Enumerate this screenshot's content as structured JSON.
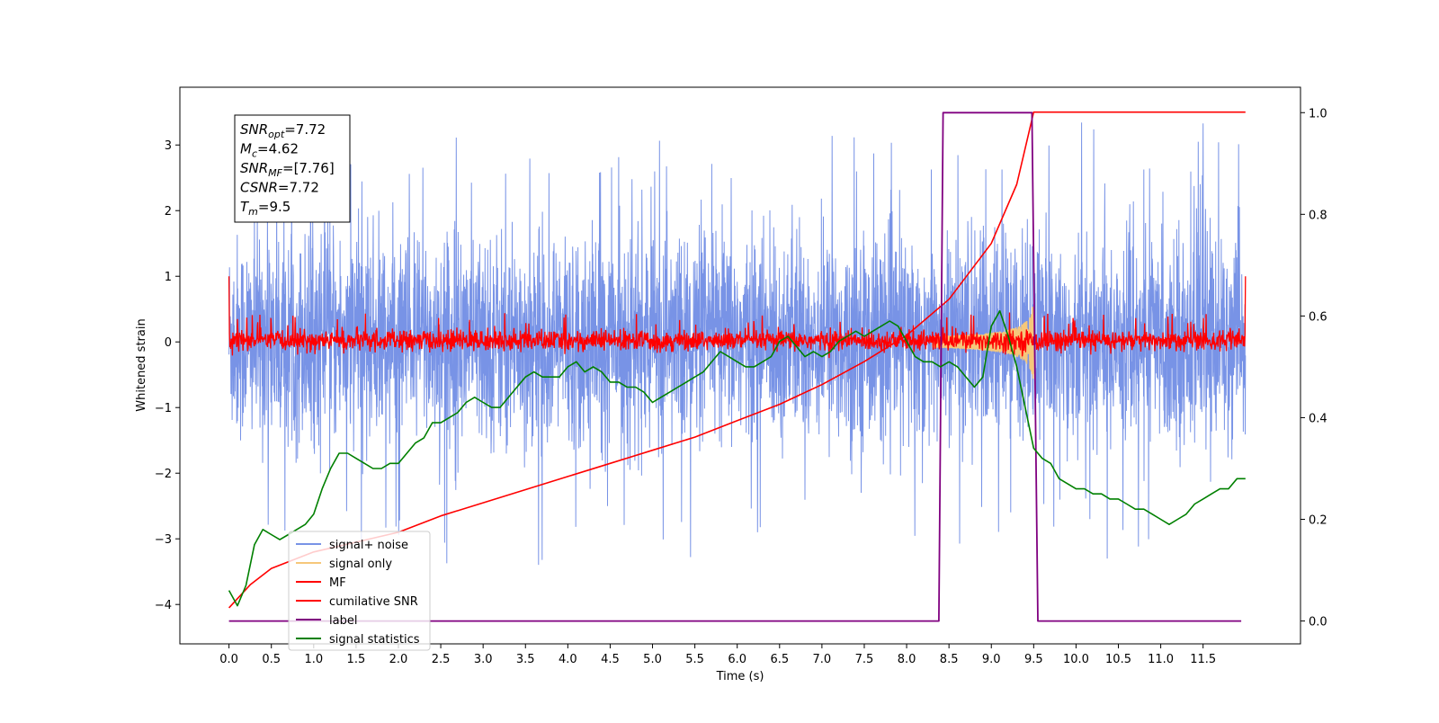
{
  "chart_data": {
    "type": "line",
    "xlabel": "Time (s)",
    "ylabel_left": "Whitened strain",
    "ylabel_right": "",
    "xlim": [
      -0.58,
      12.65
    ],
    "ylim_left": [
      -4.6,
      3.88
    ],
    "ylim_right": [
      -0.045,
      1.05
    ],
    "x_ticks": [
      "0.0",
      "0.5",
      "1.0",
      "1.5",
      "2.0",
      "2.5",
      "3.0",
      "3.5",
      "4.0",
      "4.5",
      "5.0",
      "5.5",
      "6.0",
      "6.5",
      "7.0",
      "7.5",
      "8.0",
      "8.5",
      "9.0",
      "9.5",
      "10.0",
      "10.5",
      "11.0",
      "11.5"
    ],
    "y_ticks_left": [
      "−4",
      "−3",
      "−2",
      "−1",
      "0",
      "1",
      "2",
      "3"
    ],
    "y_ticks_right": [
      "0.0",
      "0.2",
      "0.4",
      "0.6",
      "0.8",
      "1.0"
    ],
    "grid": false,
    "legend_position": "lower-left",
    "annotation": {
      "lines": [
        {
          "base": "SNR",
          "sub": "opt",
          "value": "=7.72"
        },
        {
          "base": "M",
          "sub": "c",
          "value": "=4.62"
        },
        {
          "base": "SNR",
          "sub": "MF",
          "value": "=[7.76]"
        },
        {
          "base": "CSNR",
          "sub": "",
          "value": "=7.72"
        },
        {
          "base": "T",
          "sub": "m",
          "value": "=9.5"
        }
      ]
    },
    "series": [
      {
        "name": "signal+ noise",
        "color": "#7893e6",
        "axis": "left",
        "kind": "noise",
        "x_range": [
          0.0,
          12.0
        ],
        "approx_band": [
          -1.2,
          1.3
        ],
        "approx_extremes": [
          -3.7,
          3.4
        ]
      },
      {
        "name": "signal only",
        "color": "#f6c77a",
        "axis": "left",
        "kind": "chirp",
        "x_range": [
          8.3,
          9.5
        ],
        "peak_amplitude": 0.6,
        "merger_time": 9.5
      },
      {
        "name": "MF",
        "color": "#ff0000",
        "axis": "left",
        "kind": "noise",
        "x_range": [
          0.0,
          12.0
        ],
        "approx_band": [
          -0.15,
          0.2
        ],
        "edge_values": [
          1.0,
          1.0
        ]
      },
      {
        "name": "cumilative SNR",
        "color": "#ff0000",
        "axis": "left",
        "points": [
          [
            0.0,
            -4.05
          ],
          [
            0.25,
            -3.7
          ],
          [
            0.5,
            -3.45
          ],
          [
            1.0,
            -3.2
          ],
          [
            1.5,
            -3.05
          ],
          [
            2.0,
            -2.9
          ],
          [
            2.5,
            -2.65
          ],
          [
            3.0,
            -2.45
          ],
          [
            3.5,
            -2.25
          ],
          [
            4.0,
            -2.05
          ],
          [
            4.5,
            -1.85
          ],
          [
            5.0,
            -1.65
          ],
          [
            5.5,
            -1.45
          ],
          [
            6.0,
            -1.2
          ],
          [
            6.5,
            -0.95
          ],
          [
            7.0,
            -0.65
          ],
          [
            7.5,
            -0.3
          ],
          [
            8.0,
            0.1
          ],
          [
            8.5,
            0.65
          ],
          [
            9.0,
            1.5
          ],
          [
            9.3,
            2.4
          ],
          [
            9.5,
            3.5
          ],
          [
            12.0,
            3.5
          ]
        ]
      },
      {
        "name": "label",
        "color": "#800080",
        "axis": "right",
        "points": [
          [
            0.0,
            0.0
          ],
          [
            8.38,
            0.0
          ],
          [
            8.43,
            1.0
          ],
          [
            9.48,
            1.0
          ],
          [
            9.55,
            0.0
          ],
          [
            11.95,
            0.0
          ]
        ]
      },
      {
        "name": "signal statistics",
        "color": "#008000",
        "axis": "right",
        "points": [
          [
            0.0,
            0.06
          ],
          [
            0.1,
            0.03
          ],
          [
            0.2,
            0.07
          ],
          [
            0.3,
            0.15
          ],
          [
            0.4,
            0.18
          ],
          [
            0.5,
            0.17
          ],
          [
            0.6,
            0.16
          ],
          [
            0.7,
            0.17
          ],
          [
            0.8,
            0.18
          ],
          [
            0.9,
            0.19
          ],
          [
            1.0,
            0.21
          ],
          [
            1.1,
            0.26
          ],
          [
            1.2,
            0.3
          ],
          [
            1.3,
            0.33
          ],
          [
            1.4,
            0.33
          ],
          [
            1.5,
            0.32
          ],
          [
            1.6,
            0.31
          ],
          [
            1.7,
            0.3
          ],
          [
            1.8,
            0.3
          ],
          [
            1.9,
            0.31
          ],
          [
            2.0,
            0.31
          ],
          [
            2.1,
            0.33
          ],
          [
            2.2,
            0.35
          ],
          [
            2.3,
            0.36
          ],
          [
            2.4,
            0.39
          ],
          [
            2.5,
            0.39
          ],
          [
            2.6,
            0.4
          ],
          [
            2.7,
            0.41
          ],
          [
            2.8,
            0.43
          ],
          [
            2.9,
            0.44
          ],
          [
            3.0,
            0.43
          ],
          [
            3.1,
            0.42
          ],
          [
            3.2,
            0.42
          ],
          [
            3.3,
            0.44
          ],
          [
            3.4,
            0.46
          ],
          [
            3.5,
            0.48
          ],
          [
            3.6,
            0.49
          ],
          [
            3.7,
            0.48
          ],
          [
            3.8,
            0.48
          ],
          [
            3.9,
            0.48
          ],
          [
            4.0,
            0.5
          ],
          [
            4.1,
            0.51
          ],
          [
            4.2,
            0.49
          ],
          [
            4.3,
            0.5
          ],
          [
            4.4,
            0.49
          ],
          [
            4.5,
            0.47
          ],
          [
            4.6,
            0.47
          ],
          [
            4.7,
            0.46
          ],
          [
            4.8,
            0.46
          ],
          [
            4.9,
            0.45
          ],
          [
            5.0,
            0.43
          ],
          [
            5.1,
            0.44
          ],
          [
            5.2,
            0.45
          ],
          [
            5.3,
            0.46
          ],
          [
            5.4,
            0.47
          ],
          [
            5.5,
            0.48
          ],
          [
            5.6,
            0.49
          ],
          [
            5.7,
            0.51
          ],
          [
            5.8,
            0.53
          ],
          [
            5.9,
            0.52
          ],
          [
            6.0,
            0.51
          ],
          [
            6.1,
            0.5
          ],
          [
            6.2,
            0.5
          ],
          [
            6.3,
            0.51
          ],
          [
            6.4,
            0.52
          ],
          [
            6.5,
            0.55
          ],
          [
            6.6,
            0.56
          ],
          [
            6.7,
            0.54
          ],
          [
            6.8,
            0.52
          ],
          [
            6.9,
            0.53
          ],
          [
            7.0,
            0.52
          ],
          [
            7.1,
            0.53
          ],
          [
            7.2,
            0.55
          ],
          [
            7.3,
            0.56
          ],
          [
            7.4,
            0.57
          ],
          [
            7.5,
            0.56
          ],
          [
            7.6,
            0.57
          ],
          [
            7.7,
            0.58
          ],
          [
            7.8,
            0.59
          ],
          [
            7.9,
            0.58
          ],
          [
            8.0,
            0.55
          ],
          [
            8.1,
            0.52
          ],
          [
            8.2,
            0.51
          ],
          [
            8.3,
            0.51
          ],
          [
            8.4,
            0.5
          ],
          [
            8.5,
            0.51
          ],
          [
            8.6,
            0.5
          ],
          [
            8.7,
            0.48
          ],
          [
            8.8,
            0.46
          ],
          [
            8.9,
            0.48
          ],
          [
            9.0,
            0.58
          ],
          [
            9.1,
            0.61
          ],
          [
            9.2,
            0.56
          ],
          [
            9.3,
            0.5
          ],
          [
            9.4,
            0.42
          ],
          [
            9.5,
            0.34
          ],
          [
            9.6,
            0.32
          ],
          [
            9.7,
            0.31
          ],
          [
            9.8,
            0.28
          ],
          [
            9.9,
            0.27
          ],
          [
            10.0,
            0.26
          ],
          [
            10.1,
            0.26
          ],
          [
            10.2,
            0.25
          ],
          [
            10.3,
            0.25
          ],
          [
            10.4,
            0.24
          ],
          [
            10.5,
            0.24
          ],
          [
            10.6,
            0.23
          ],
          [
            10.7,
            0.22
          ],
          [
            10.8,
            0.22
          ],
          [
            10.9,
            0.21
          ],
          [
            11.0,
            0.2
          ],
          [
            11.1,
            0.19
          ],
          [
            11.2,
            0.2
          ],
          [
            11.3,
            0.21
          ],
          [
            11.4,
            0.23
          ],
          [
            11.5,
            0.24
          ],
          [
            11.6,
            0.25
          ],
          [
            11.7,
            0.26
          ],
          [
            11.8,
            0.26
          ],
          [
            11.9,
            0.28
          ],
          [
            12.0,
            0.28
          ]
        ]
      }
    ]
  }
}
